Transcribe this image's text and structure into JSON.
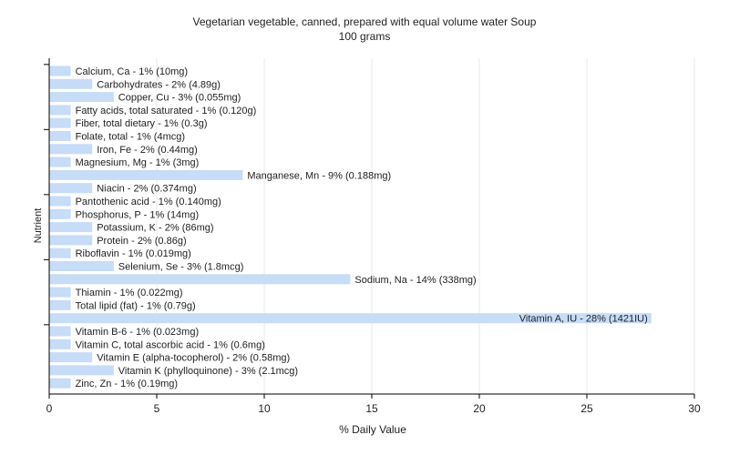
{
  "chart_data": {
    "type": "bar",
    "orientation": "horizontal",
    "title": "Vegetarian vegetable, canned, prepared with equal volume water Soup",
    "subtitle": "100 grams",
    "xlabel": "% Daily Value",
    "ylabel": "Nutrient",
    "xlim": [
      0,
      30
    ],
    "xticks": [
      0,
      5,
      10,
      15,
      20,
      25,
      30
    ],
    "grid": true,
    "legend": "none",
    "colors": {
      "bar": "#c6dcf7",
      "grid": "#e8e8e8",
      "axis": "#000000",
      "text": "#222222",
      "background": "#ffffff"
    },
    "bars": [
      {
        "label": "Calcium, Ca - 1% (10mg)",
        "value": 1
      },
      {
        "label": "Carbohydrates - 2% (4.89g)",
        "value": 2
      },
      {
        "label": "Copper, Cu - 3% (0.055mg)",
        "value": 3
      },
      {
        "label": "Fatty acids, total saturated - 1% (0.120g)",
        "value": 1
      },
      {
        "label": "Fiber, total dietary - 1% (0.3g)",
        "value": 1
      },
      {
        "label": "Folate, total - 1% (4mcg)",
        "value": 1
      },
      {
        "label": "Iron, Fe - 2% (0.44mg)",
        "value": 2
      },
      {
        "label": "Magnesium, Mg - 1% (3mg)",
        "value": 1
      },
      {
        "label": "Manganese, Mn - 9% (0.188mg)",
        "value": 9
      },
      {
        "label": "Niacin - 2% (0.374mg)",
        "value": 2
      },
      {
        "label": "Pantothenic acid - 1% (0.140mg)",
        "value": 1
      },
      {
        "label": "Phosphorus, P - 1% (14mg)",
        "value": 1
      },
      {
        "label": "Potassium, K - 2% (86mg)",
        "value": 2
      },
      {
        "label": "Protein - 2% (0.86g)",
        "value": 2
      },
      {
        "label": "Riboflavin - 1% (0.019mg)",
        "value": 1
      },
      {
        "label": "Selenium, Se - 3% (1.8mcg)",
        "value": 3
      },
      {
        "label": "Sodium, Na - 14% (338mg)",
        "value": 14
      },
      {
        "label": "Thiamin - 1% (0.022mg)",
        "value": 1
      },
      {
        "label": "Total lipid (fat) - 1% (0.79g)",
        "value": 1
      },
      {
        "label": "Vitamin A, IU - 28% (1421IU)",
        "value": 28
      },
      {
        "label": "Vitamin B-6 - 1% (0.023mg)",
        "value": 1
      },
      {
        "label": "Vitamin C, total ascorbic acid - 1% (0.6mg)",
        "value": 1
      },
      {
        "label": "Vitamin E (alpha-tocopherol) - 2% (0.58mg)",
        "value": 2
      },
      {
        "label": "Vitamin K (phylloquinone) - 3% (2.1mcg)",
        "value": 3
      },
      {
        "label": "Zinc, Zn - 1% (0.19mg)",
        "value": 1
      }
    ]
  }
}
